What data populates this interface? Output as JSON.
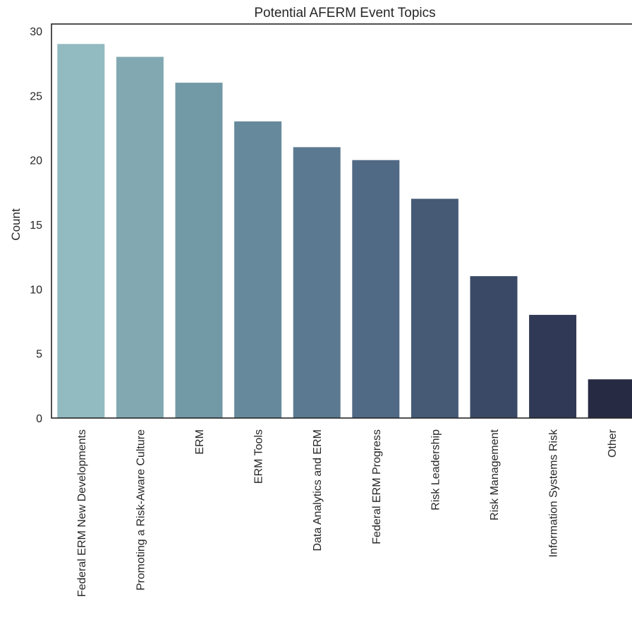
{
  "chart_data": {
    "type": "bar",
    "title": "Potential AFERM Event Topics",
    "xlabel": "",
    "ylabel": "Count",
    "ylim": [
      0,
      30
    ],
    "yticks": [
      0,
      5,
      10,
      15,
      20,
      25,
      30
    ],
    "grid": false,
    "categories": [
      "Federal ERM New Developments",
      "Promoting a Risk-Aware Culture",
      "ERM",
      "ERM Tools",
      "Data Analytics and ERM",
      "Federal ERM Progress",
      "Risk Leadership",
      "Risk Management",
      "Information Systems Risk",
      "Other"
    ],
    "values": [
      29,
      28,
      26,
      23,
      21,
      20,
      17,
      11,
      8,
      3
    ],
    "colors": [
      "#92bac1",
      "#82a9b2",
      "#7299a6",
      "#668a9c",
      "#5b7a91",
      "#506985",
      "#465a76",
      "#3a4a66",
      "#303955",
      "#262a42"
    ]
  }
}
